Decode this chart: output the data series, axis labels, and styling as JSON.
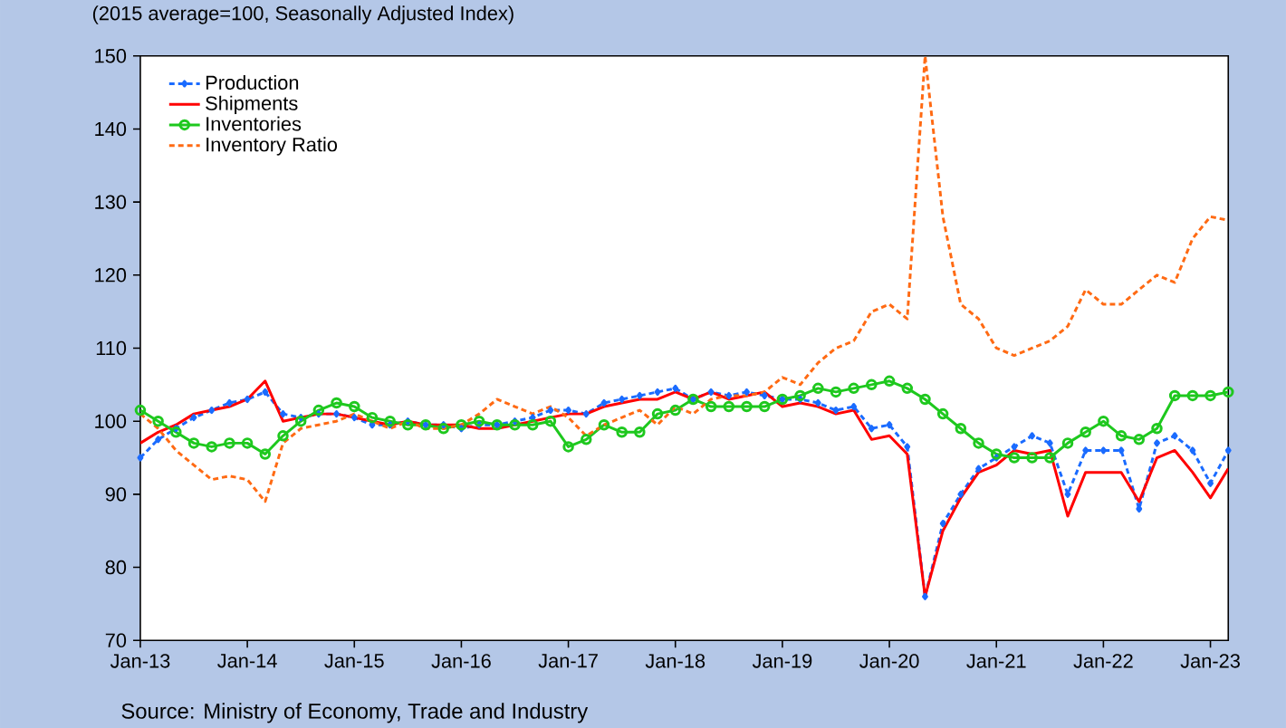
{
  "chart_data": {
    "type": "line",
    "title": "(2015 average=100, Seasonally Adjusted Index)",
    "annotations": [
      "Source:  Ministry of Economy, Trade and Industry"
    ],
    "x": [
      "2013-01",
      "2013-03",
      "2013-05",
      "2013-07",
      "2013-09",
      "2013-11",
      "2014-01",
      "2014-03",
      "2014-05",
      "2014-07",
      "2014-09",
      "2014-11",
      "2015-01",
      "2015-03",
      "2015-05",
      "2015-07",
      "2015-09",
      "2015-11",
      "2016-01",
      "2016-03",
      "2016-05",
      "2016-07",
      "2016-09",
      "2016-11",
      "2017-01",
      "2017-03",
      "2017-05",
      "2017-07",
      "2017-09",
      "2017-11",
      "2018-01",
      "2018-03",
      "2018-05",
      "2018-07",
      "2018-09",
      "2018-11",
      "2019-01",
      "2019-03",
      "2019-05",
      "2019-07",
      "2019-09",
      "2019-11",
      "2020-01",
      "2020-03",
      "2020-05",
      "2020-07",
      "2020-09",
      "2020-11",
      "2021-01",
      "2021-03",
      "2021-05",
      "2021-07",
      "2021-09",
      "2021-11",
      "2022-01",
      "2022-03",
      "2022-05",
      "2022-07",
      "2022-09",
      "2022-11",
      "2023-01",
      "2023-03"
    ],
    "series": [
      {
        "name": "Production",
        "color": "#1a6bff",
        "line_style": "dashed",
        "marker": "diamond",
        "values": [
          95,
          97.5,
          99,
          100.5,
          101.5,
          102.5,
          103,
          104,
          101,
          100.5,
          101,
          101,
          100.5,
          99.5,
          99.5,
          100,
          99.5,
          99.5,
          99,
          99.5,
          99.5,
          100,
          100.5,
          101.5,
          101.5,
          101,
          102.5,
          103,
          103.5,
          104,
          104.5,
          103,
          104,
          103.5,
          104,
          103.5,
          103,
          103,
          102.5,
          101.5,
          102,
          99,
          99.5,
          96.5,
          76,
          86,
          90,
          93.5,
          95,
          96.5,
          98,
          97,
          90,
          96,
          96,
          96,
          88,
          97,
          98,
          96,
          91.5,
          96
        ]
      },
      {
        "name": "Shipments",
        "color": "#ff0000",
        "line_style": "solid",
        "marker": "none",
        "values": [
          97,
          98.5,
          99.5,
          101,
          101.5,
          102,
          103,
          105.5,
          100,
          100.5,
          101,
          101,
          100.5,
          100,
          99.5,
          100,
          99.5,
          99.5,
          99.5,
          99,
          99,
          99.5,
          100,
          100.5,
          101,
          101,
          102,
          102.5,
          103,
          103,
          104,
          103,
          104,
          103,
          103.5,
          104,
          102,
          102.5,
          102,
          101,
          101.5,
          97.5,
          98,
          95.5,
          76,
          85,
          89.5,
          93,
          94,
          96,
          95.5,
          96,
          87,
          93,
          93,
          93,
          89,
          95,
          96,
          93,
          89.5,
          93.5
        ]
      },
      {
        "name": "Inventories",
        "color": "#1ec81e",
        "line_style": "solid",
        "marker": "circle",
        "values": [
          101.5,
          100,
          98.5,
          97,
          96.5,
          97,
          97,
          95.5,
          98,
          100,
          101.5,
          102.5,
          102,
          100.5,
          100,
          99.5,
          99.5,
          99,
          99.5,
          100,
          99.5,
          99.5,
          99.5,
          100,
          96.5,
          97.5,
          99.5,
          98.5,
          98.5,
          101,
          101.5,
          103,
          102,
          102,
          102,
          102,
          103,
          103.5,
          104.5,
          104,
          104.5,
          105,
          105.5,
          104.5,
          103,
          101,
          99,
          97,
          95.5,
          95,
          95,
          95,
          97,
          98.5,
          100,
          98,
          97.5,
          99,
          103.5,
          103.5,
          103.5,
          104
        ]
      },
      {
        "name": "Inventory Ratio",
        "color": "#ff6a13",
        "line_style": "dashed",
        "marker": "none",
        "values": [
          101,
          99,
          96,
          94,
          92,
          92.5,
          92,
          89,
          97,
          99,
          99.5,
          100,
          101,
          100,
          99,
          100,
          99,
          99,
          99.5,
          101,
          103,
          102,
          101,
          102,
          100.5,
          98,
          99.5,
          100.5,
          101.5,
          99.5,
          102,
          101,
          103,
          103.5,
          103.5,
          104,
          106,
          105,
          108,
          110,
          111,
          115,
          116,
          114,
          150,
          128,
          116,
          114,
          110,
          109,
          110,
          111,
          113,
          118,
          116,
          116,
          118,
          120,
          119,
          125,
          128,
          127.5
        ]
      }
    ],
    "xlim": [
      "2013-01",
      "2023-03"
    ],
    "xticks": [
      {
        "value": "2013-01",
        "label": "Jan-13"
      },
      {
        "value": "2014-01",
        "label": "Jan-14"
      },
      {
        "value": "2015-01",
        "label": "Jan-15"
      },
      {
        "value": "2016-01",
        "label": "Jan-16"
      },
      {
        "value": "2017-01",
        "label": "Jan-17"
      },
      {
        "value": "2018-01",
        "label": "Jan-18"
      },
      {
        "value": "2019-01",
        "label": "Jan-19"
      },
      {
        "value": "2020-01",
        "label": "Jan-20"
      },
      {
        "value": "2021-01",
        "label": "Jan-21"
      },
      {
        "value": "2022-01",
        "label": "Jan-22"
      },
      {
        "value": "2023-01",
        "label": "Jan-23"
      }
    ],
    "ylim": [
      70,
      150
    ],
    "yticks": [
      70,
      80,
      90,
      100,
      110,
      120,
      130,
      140,
      150
    ],
    "grid": false,
    "legend": "top left"
  }
}
